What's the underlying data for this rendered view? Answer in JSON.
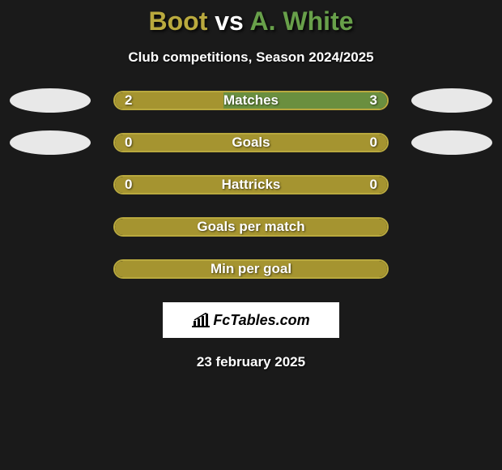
{
  "title": {
    "player1": "Boot",
    "vs": "vs",
    "player2": "A. White",
    "player1_color": "#b9a93e",
    "vs_color": "#ffffff",
    "player2_color": "#68a04a"
  },
  "subtitle": "Club competitions, Season 2024/2025",
  "colors": {
    "background": "#1a1a1a",
    "player1_bar": "#a59430",
    "player2_bar": "#6a8f3f",
    "bar_border": "#b9a93e",
    "ellipse1": "#e8e8e8",
    "ellipse2": "#e8e8e8"
  },
  "stats": [
    {
      "label": "Matches",
      "left_value": "2",
      "right_value": "3",
      "left_pct": 40,
      "right_pct": 60,
      "show_ellipses": true
    },
    {
      "label": "Goals",
      "left_value": "0",
      "right_value": "0",
      "left_pct": 0,
      "right_pct": 0,
      "show_ellipses": true
    },
    {
      "label": "Hattricks",
      "left_value": "0",
      "right_value": "0",
      "left_pct": 0,
      "right_pct": 0,
      "show_ellipses": false
    },
    {
      "label": "Goals per match",
      "left_value": "",
      "right_value": "",
      "left_pct": 0,
      "right_pct": 0,
      "show_ellipses": false
    },
    {
      "label": "Min per goal",
      "left_value": "",
      "right_value": "",
      "left_pct": 0,
      "right_pct": 0,
      "show_ellipses": false
    }
  ],
  "logo_text": "FcTables.com",
  "date": "23 february 2025"
}
